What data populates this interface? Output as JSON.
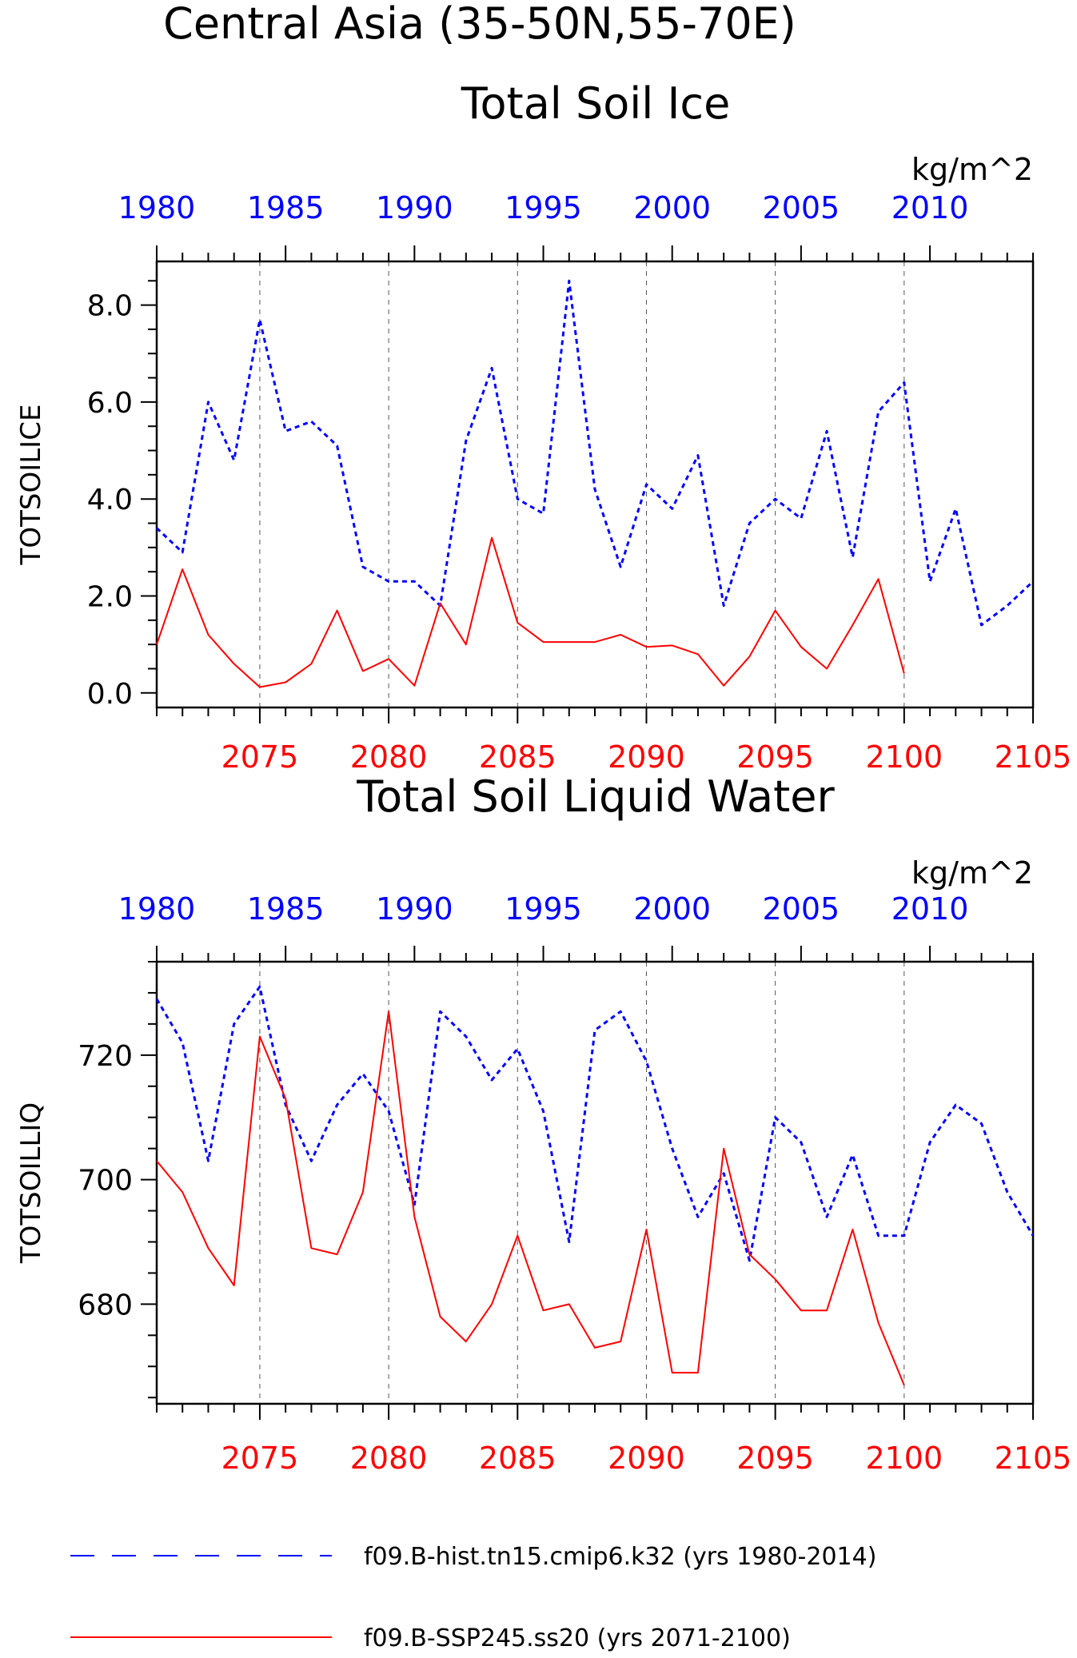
{
  "title_line1": "Central Asia (35-50N,55-70E)",
  "chart_data": [
    {
      "type": "line",
      "title": "Total Soil Ice",
      "ylabel": "TOTSOILICE",
      "units": "kg/m^2",
      "ylim": [
        -0.3,
        8.9
      ],
      "yticks": [
        0.0,
        2.0,
        4.0,
        6.0,
        8.0
      ],
      "ytick_labels": [
        "0.0",
        "2.0",
        "4.0",
        "6.0",
        "8.0"
      ],
      "bottom_axis": {
        "range": [
          2071,
          2105
        ],
        "ticks": [
          2075,
          2080,
          2085,
          2090,
          2095,
          2100,
          2105
        ],
        "color": "#ff0000"
      },
      "top_axis": {
        "range": [
          1980,
          2014
        ],
        "ticks": [
          1980,
          1985,
          1990,
          1995,
          2000,
          2005,
          2010
        ],
        "color": "#0000ff"
      },
      "series": [
        {
          "name": "f09.B-hist.tn15.cmip6.k32 (yrs 1980-2014)",
          "axis": "top",
          "color": "#0000ff",
          "style": "dashed",
          "x": [
            1980,
            1981,
            1982,
            1983,
            1984,
            1985,
            1986,
            1987,
            1988,
            1989,
            1990,
            1991,
            1992,
            1993,
            1994,
            1995,
            1996,
            1997,
            1998,
            1999,
            2000,
            2001,
            2002,
            2003,
            2004,
            2005,
            2006,
            2007,
            2008,
            2009,
            2010,
            2011,
            2012,
            2013,
            2014
          ],
          "values": [
            3.4,
            2.9,
            6.0,
            4.8,
            7.7,
            5.4,
            5.6,
            5.1,
            2.6,
            2.3,
            2.3,
            1.8,
            5.2,
            6.7,
            4.0,
            3.7,
            8.5,
            4.2,
            2.6,
            4.3,
            3.8,
            4.9,
            1.8,
            3.5,
            4.0,
            3.6,
            5.4,
            2.8,
            5.8,
            6.4,
            2.3,
            3.8,
            1.4,
            1.8,
            2.3
          ]
        },
        {
          "name": "f09.B-SSP245.ss20 (yrs 2071-2100)",
          "axis": "bottom",
          "color": "#ff0000",
          "style": "solid",
          "x": [
            2071,
            2072,
            2073,
            2074,
            2075,
            2076,
            2077,
            2078,
            2079,
            2080,
            2081,
            2082,
            2083,
            2084,
            2085,
            2086,
            2087,
            2088,
            2089,
            2090,
            2091,
            2092,
            2093,
            2094,
            2095,
            2096,
            2097,
            2098,
            2099,
            2100
          ],
          "values": [
            1.0,
            2.55,
            1.2,
            0.6,
            0.12,
            0.22,
            0.6,
            1.7,
            0.45,
            0.7,
            0.15,
            1.85,
            1.0,
            3.2,
            1.45,
            1.05,
            1.05,
            1.05,
            1.2,
            0.95,
            0.98,
            0.8,
            0.15,
            0.75,
            1.7,
            0.95,
            0.5,
            1.4,
            2.35,
            0.4
          ]
        }
      ]
    },
    {
      "type": "line",
      "title": "Total Soil Liquid Water",
      "ylabel": "TOTSOILLIQ",
      "units": "kg/m^2",
      "ylim": [
        664,
        735
      ],
      "yticks": [
        680,
        700,
        720
      ],
      "ytick_labels": [
        "680",
        "700",
        "720"
      ],
      "bottom_axis": {
        "range": [
          2071,
          2105
        ],
        "ticks": [
          2075,
          2080,
          2085,
          2090,
          2095,
          2100,
          2105
        ],
        "color": "#ff0000"
      },
      "top_axis": {
        "range": [
          1980,
          2014
        ],
        "ticks": [
          1980,
          1985,
          1990,
          1995,
          2000,
          2005,
          2010
        ],
        "color": "#0000ff"
      },
      "series": [
        {
          "name": "f09.B-hist.tn15.cmip6.k32 (yrs 1980-2014)",
          "axis": "top",
          "color": "#0000ff",
          "style": "dashed",
          "x": [
            1980,
            1981,
            1982,
            1983,
            1984,
            1985,
            1986,
            1987,
            1988,
            1989,
            1990,
            1991,
            1992,
            1993,
            1994,
            1995,
            1996,
            1997,
            1998,
            1999,
            2000,
            2001,
            2002,
            2003,
            2004,
            2005,
            2006,
            2007,
            2008,
            2009,
            2010,
            2011,
            2012,
            2013,
            2014
          ],
          "values": [
            729,
            722,
            703,
            725,
            731,
            712,
            703,
            712,
            717,
            711,
            696,
            727,
            723,
            716,
            721,
            711,
            690,
            724,
            727,
            719,
            705,
            694,
            701,
            687,
            710,
            706,
            694,
            704,
            691,
            691,
            706,
            712,
            709,
            698,
            691
          ]
        },
        {
          "name": "f09.B-SSP245.ss20 (yrs 2071-2100)",
          "axis": "bottom",
          "color": "#ff0000",
          "style": "solid",
          "x": [
            2071,
            2072,
            2073,
            2074,
            2075,
            2076,
            2077,
            2078,
            2079,
            2080,
            2081,
            2082,
            2083,
            2084,
            2085,
            2086,
            2087,
            2088,
            2089,
            2090,
            2091,
            2092,
            2093,
            2094,
            2095,
            2096,
            2097,
            2098,
            2099,
            2100
          ],
          "values": [
            703,
            698,
            689,
            683,
            723,
            713,
            689,
            688,
            698,
            727,
            694,
            678,
            674,
            680,
            691,
            679,
            680,
            673,
            674,
            692,
            669,
            669,
            705,
            688,
            684,
            679,
            679,
            692,
            677,
            667
          ]
        }
      ]
    }
  ],
  "legend": [
    {
      "label": "f09.B-hist.tn15.cmip6.k32 (yrs 1980-2014)",
      "color": "#0000ff",
      "style": "dashed"
    },
    {
      "label": "f09.B-SSP245.ss20 (yrs 2071-2100)",
      "color": "#ff0000",
      "style": "solid"
    }
  ]
}
